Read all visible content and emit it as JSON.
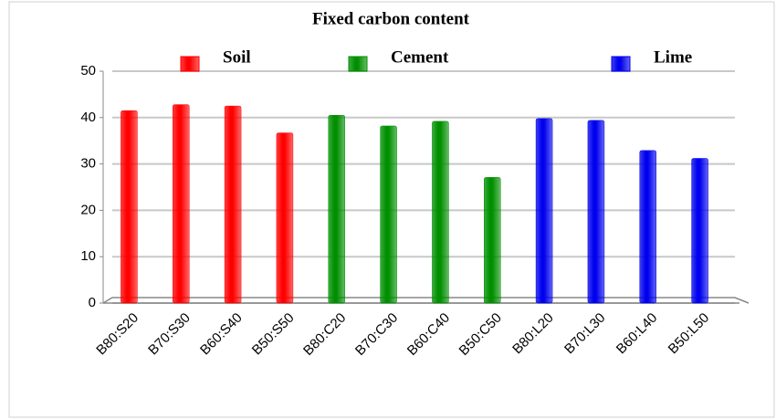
{
  "chart_data": {
    "type": "bar",
    "title": "Fixed carbon content",
    "categories": [
      "B80:S20",
      "B70:S30",
      "B60:S40",
      "B50:S50",
      "B80:C20",
      "B70:C30",
      "B60:C40",
      "B50:C50",
      "B80:L20",
      "B70:L30",
      "B60:L40",
      "B50:L50"
    ],
    "series": [
      {
        "name": "Soil",
        "color": "#ff0000",
        "values": [
          41.5,
          42.8,
          42.5,
          36.7,
          null,
          null,
          null,
          null,
          null,
          null,
          null,
          null
        ]
      },
      {
        "name": "Cement",
        "color": "#008f00",
        "values": [
          null,
          null,
          null,
          null,
          40.5,
          38.2,
          39.2,
          27.1,
          null,
          null,
          null,
          null
        ]
      },
      {
        "name": "Lime",
        "color": "#0000ee",
        "values": [
          null,
          null,
          null,
          null,
          null,
          null,
          null,
          null,
          39.8,
          39.4,
          32.9,
          31.2
        ]
      }
    ],
    "ylim": [
      0,
      50
    ],
    "yticks": [
      0,
      10,
      20,
      30,
      40,
      50
    ],
    "grid": true,
    "legend": "top"
  }
}
